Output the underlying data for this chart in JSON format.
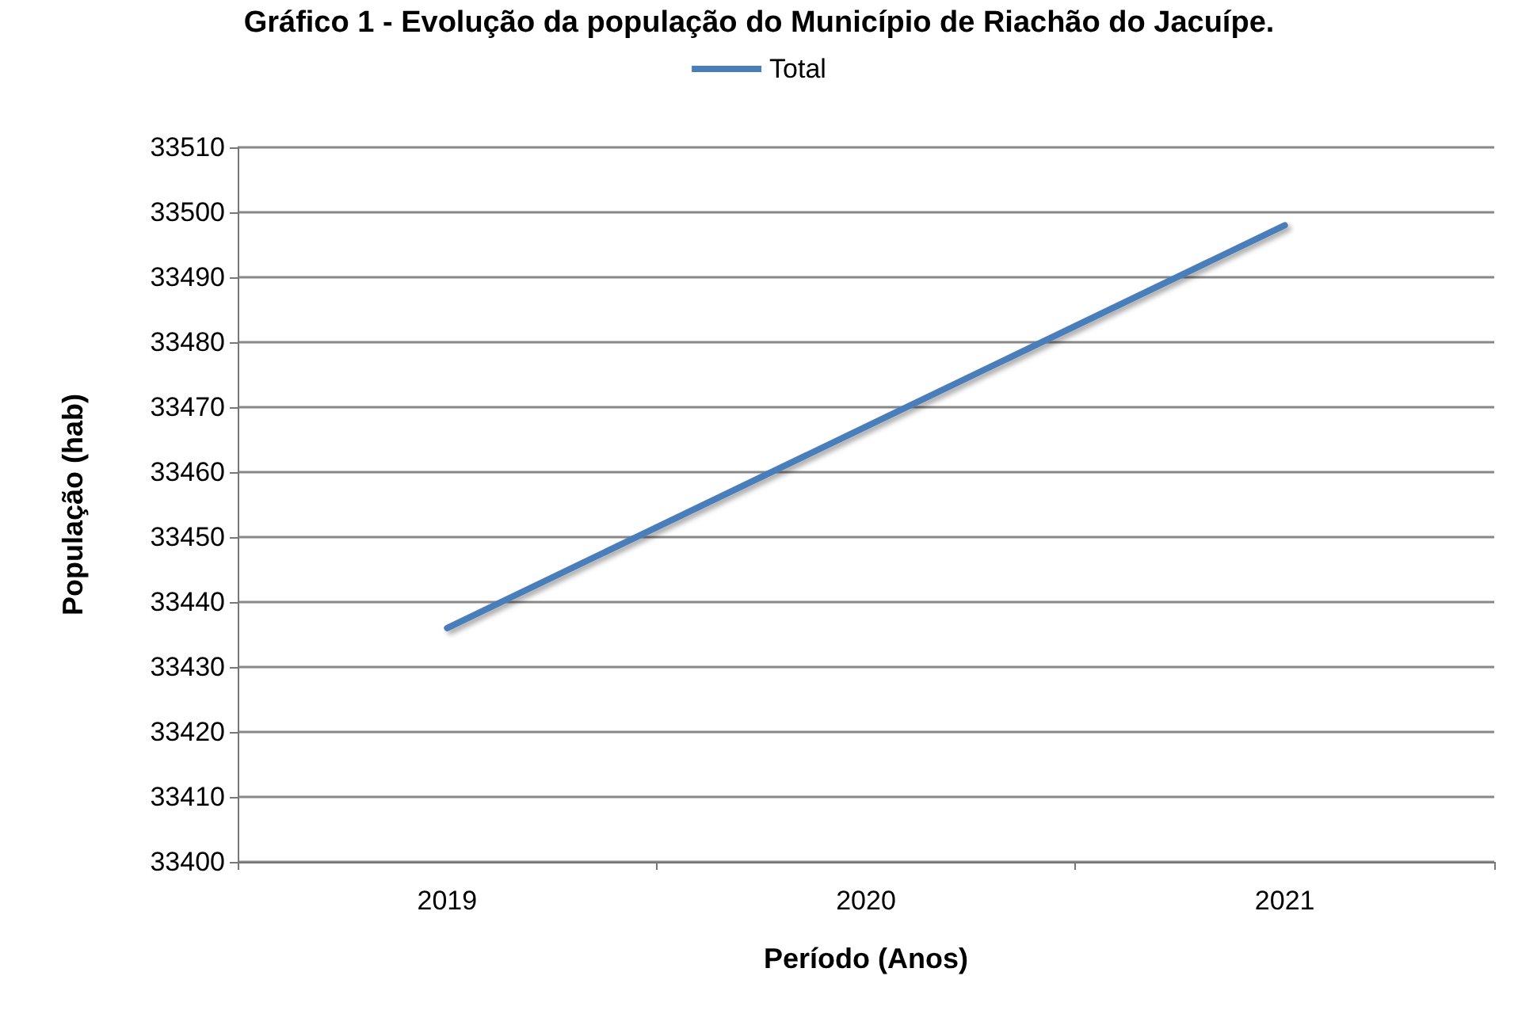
{
  "chart_data": {
    "type": "line",
    "title": "Gráfico 1 - Evolução da população do Município de Riachão do Jacuípe.",
    "xlabel": "Período (Anos)",
    "ylabel": "População (hab)",
    "categories": [
      "2019",
      "2020",
      "2021"
    ],
    "series": [
      {
        "name": "Total",
        "color": "#4a7ebb",
        "values": [
          33436,
          33467,
          33498
        ]
      }
    ],
    "ylim": [
      33400,
      33510
    ],
    "yticks": [
      33400,
      33410,
      33420,
      33430,
      33440,
      33450,
      33460,
      33470,
      33480,
      33490,
      33500,
      33510
    ],
    "grid": "y",
    "legend": "top",
    "marker": "none",
    "line_style": "solid"
  }
}
